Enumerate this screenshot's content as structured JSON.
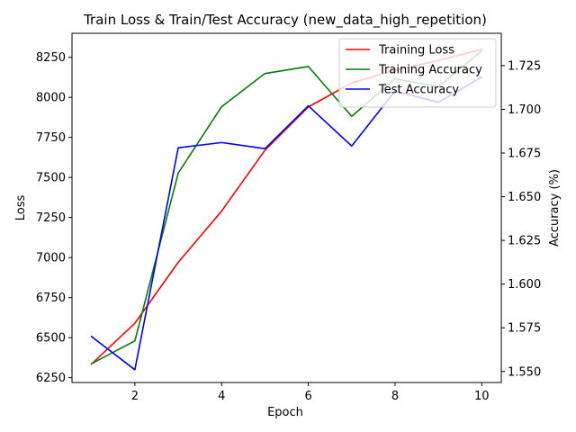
{
  "chart_data": {
    "type": "line",
    "title": "Train Loss & Train/Test Accuracy (new_data_high_repetition)",
    "xlabel": "Epoch",
    "ylabel_left": "Loss",
    "ylabel_right": "Accuracy (%)",
    "x": [
      1,
      2,
      3,
      4,
      5,
      6,
      7,
      8,
      9,
      10
    ],
    "xlim": [
      0.55,
      10.45
    ],
    "xticks": [
      2,
      4,
      6,
      8,
      10
    ],
    "ylim_left": [
      6220,
      8400
    ],
    "yticks_left": [
      6250,
      6500,
      6750,
      7000,
      7250,
      7500,
      7750,
      8000,
      8250
    ],
    "ylim_right": [
      1.5437,
      1.7435
    ],
    "yticks_right": [
      1.55,
      1.575,
      1.6,
      1.625,
      1.65,
      1.675,
      1.7,
      1.725
    ],
    "grid": false,
    "legend_position": "top-right",
    "series": [
      {
        "name": "Training Loss",
        "axis": "left",
        "color": "#ff0000",
        "values": [
          6335,
          6590,
          6970,
          7290,
          7670,
          7940,
          8090,
          8170,
          8230,
          8300
        ]
      },
      {
        "name": "Training Accuracy",
        "axis": "right",
        "color": "#008000",
        "values": [
          1.5545,
          1.5675,
          1.6635,
          1.7015,
          1.7205,
          1.7245,
          1.696,
          1.7175,
          1.713,
          1.7335
        ]
      },
      {
        "name": "Test Accuracy",
        "axis": "right",
        "color": "#0000ff",
        "values": [
          1.57,
          1.551,
          1.678,
          1.681,
          1.6775,
          1.702,
          1.679,
          1.7105,
          1.704,
          1.7185
        ]
      }
    ]
  }
}
